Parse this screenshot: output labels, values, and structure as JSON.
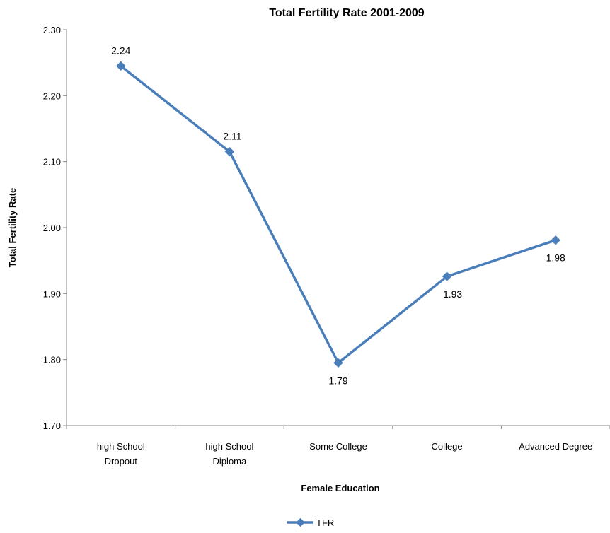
{
  "chart_data": {
    "type": "line",
    "title": "Total Fertility Rate 2001-2009",
    "xlabel": "Female Education",
    "ylabel": "Total Fertility Rate",
    "categories": [
      "high School Dropout",
      "high School Diploma",
      "Some College",
      "College",
      "Advanced Degree"
    ],
    "category_lines": [
      [
        "high School",
        "Dropout"
      ],
      [
        "high School",
        "Diploma"
      ],
      [
        "Some College"
      ],
      [
        "College"
      ],
      [
        "Advanced Degree"
      ]
    ],
    "series": [
      {
        "name": "TFR",
        "values": [
          2.245,
          2.115,
          1.795,
          1.926,
          1.981
        ],
        "labels": [
          "2.24",
          "2.11",
          "1.79",
          "1.93",
          "1.98"
        ],
        "color": "#4a7ebb"
      }
    ],
    "ylim": [
      1.7,
      2.3
    ],
    "yticks": [
      "1.70",
      "1.80",
      "1.90",
      "2.00",
      "2.10",
      "2.20",
      "2.30"
    ],
    "grid": false,
    "legend_position": "bottom",
    "marker": "diamond"
  }
}
